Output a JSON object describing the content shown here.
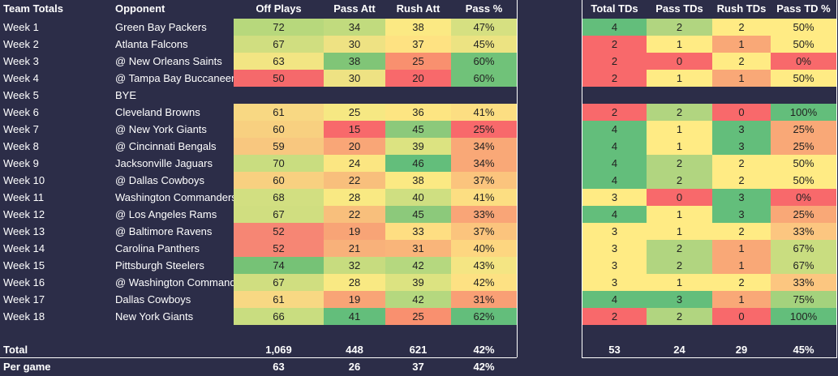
{
  "left_headers": [
    "Team Totals",
    "Opponent",
    "Off Plays",
    "Pass Att",
    "Rush Att",
    "Pass %"
  ],
  "right_headers": [
    "Total TDs",
    "Pass TDs",
    "Rush TDs",
    "Pass TD %"
  ],
  "weeks": [
    {
      "week": "Week 1",
      "opp": "Green Bay Packers",
      "off": "72",
      "pa": "34",
      "ra": "38",
      "pp": "47%",
      "tt": "4",
      "ptd": "2",
      "rtd": "2",
      "ptp": "50%"
    },
    {
      "week": "Week 2",
      "opp": "Atlanta Falcons",
      "off": "67",
      "pa": "30",
      "ra": "37",
      "pp": "45%",
      "tt": "2",
      "ptd": "1",
      "rtd": "1",
      "ptp": "50%"
    },
    {
      "week": "Week 3",
      "opp": "@ New Orleans Saints",
      "off": "63",
      "pa": "38",
      "ra": "25",
      "pp": "60%",
      "tt": "2",
      "ptd": "0",
      "rtd": "2",
      "ptp": "0%"
    },
    {
      "week": "Week 4",
      "opp": "@ Tampa Bay Buccaneers",
      "off": "50",
      "pa": "30",
      "ra": "20",
      "pp": "60%",
      "tt": "2",
      "ptd": "1",
      "rtd": "1",
      "ptp": "50%"
    },
    {
      "week": "Week 5",
      "opp": "BYE",
      "off": "",
      "pa": "",
      "ra": "",
      "pp": "",
      "tt": "",
      "ptd": "",
      "rtd": "",
      "ptp": ""
    },
    {
      "week": "Week 6",
      "opp": "Cleveland Browns",
      "off": "61",
      "pa": "25",
      "ra": "36",
      "pp": "41%",
      "tt": "2",
      "ptd": "2",
      "rtd": "0",
      "ptp": "100%"
    },
    {
      "week": "Week 7",
      "opp": "@ New York Giants",
      "off": "60",
      "pa": "15",
      "ra": "45",
      "pp": "25%",
      "tt": "4",
      "ptd": "1",
      "rtd": "3",
      "ptp": "25%"
    },
    {
      "week": "Week 8",
      "opp": "@ Cincinnati Bengals",
      "off": "59",
      "pa": "20",
      "ra": "39",
      "pp": "34%",
      "tt": "4",
      "ptd": "1",
      "rtd": "3",
      "ptp": "25%"
    },
    {
      "week": "Week 9",
      "opp": "Jacksonville Jaguars",
      "off": "70",
      "pa": "24",
      "ra": "46",
      "pp": "34%",
      "tt": "4",
      "ptd": "2",
      "rtd": "2",
      "ptp": "50%"
    },
    {
      "week": "Week 10",
      "opp": "@ Dallas Cowboys",
      "off": "60",
      "pa": "22",
      "ra": "38",
      "pp": "37%",
      "tt": "4",
      "ptd": "2",
      "rtd": "2",
      "ptp": "50%"
    },
    {
      "week": "Week 11",
      "opp": "Washington Commanders",
      "off": "68",
      "pa": "28",
      "ra": "40",
      "pp": "41%",
      "tt": "3",
      "ptd": "0",
      "rtd": "3",
      "ptp": "0%"
    },
    {
      "week": "Week 12",
      "opp": "@ Los Angeles Rams",
      "off": "67",
      "pa": "22",
      "ra": "45",
      "pp": "33%",
      "tt": "4",
      "ptd": "1",
      "rtd": "3",
      "ptp": "25%"
    },
    {
      "week": "Week 13",
      "opp": "@ Baltimore Ravens",
      "off": "52",
      "pa": "19",
      "ra": "33",
      "pp": "37%",
      "tt": "3",
      "ptd": "1",
      "rtd": "2",
      "ptp": "33%"
    },
    {
      "week": "Week 14",
      "opp": "Carolina Panthers",
      "off": "52",
      "pa": "21",
      "ra": "31",
      "pp": "40%",
      "tt": "3",
      "ptd": "2",
      "rtd": "1",
      "ptp": "67%"
    },
    {
      "week": "Week 15",
      "opp": "Pittsburgh Steelers",
      "off": "74",
      "pa": "32",
      "ra": "42",
      "pp": "43%",
      "tt": "3",
      "ptd": "2",
      "rtd": "1",
      "ptp": "67%"
    },
    {
      "week": "Week 16",
      "opp": "@ Washington Commanders",
      "off": "67",
      "pa": "28",
      "ra": "39",
      "pp": "42%",
      "tt": "3",
      "ptd": "1",
      "rtd": "2",
      "ptp": "33%"
    },
    {
      "week": "Week 17",
      "opp": "Dallas Cowboys",
      "off": "61",
      "pa": "19",
      "ra": "42",
      "pp": "31%",
      "tt": "4",
      "ptd": "3",
      "rtd": "1",
      "ptp": "75%"
    },
    {
      "week": "Week 18",
      "opp": "New York Giants",
      "off": "66",
      "pa": "41",
      "ra": "25",
      "pp": "62%",
      "tt": "2",
      "ptd": "2",
      "rtd": "0",
      "ptp": "100%"
    }
  ],
  "colors": {
    "off": [
      "#b7d87c",
      "#d0de80",
      "#f2e583",
      "#f5696b",
      null,
      "#f8d883",
      "#f8d080",
      "#f8c77f",
      "#c9dd80",
      "#f8d080",
      "#d2df81",
      "#d0de80",
      "#f68674",
      "#f68674",
      "#76c276",
      null,
      null,
      null
    ],
    "pa": [
      "#c1db7e",
      "#eee283",
      "#80c577",
      "#eee283",
      null,
      "#f6e883",
      "#f8696b",
      "#f9a677",
      "#fbe682",
      "#f8bf7c",
      "#f9e983",
      "#f8bf7c",
      "#f8a476",
      "#f8b17a",
      "#c7dc7f",
      "#f9e983",
      "#f8a476",
      "#63be7b"
    ],
    "ra": [
      "#fbe983",
      "#fee282",
      "#f9906f",
      "#f8696b",
      null,
      "#fde582",
      "#8cc97b",
      "#dce381",
      "#63be7b",
      "#fbe983",
      "#cfdf81",
      "#8cc97b",
      "#fede82",
      "#f9b57a",
      "#b5d87f",
      "#dce381",
      "#b5d87f",
      "#f9906f"
    ],
    "pp": [
      "#d6e081",
      "#ece382",
      "#70c279",
      "#70c279",
      null,
      "#fcde82",
      "#f8696b",
      "#f9a877",
      "#f9a877",
      "#fbc47d",
      "#fcde82",
      "#f9a577",
      "#fbc47d",
      "#fdd680",
      "#f4e583",
      "#fde183",
      "#f99f75",
      "#63be7b"
    ],
    "tt": [
      "#63be7b",
      "#f8696b",
      "#f8696b",
      "#f8696b",
      null,
      "#f8696b",
      "#63be7b",
      "#63be7b",
      "#63be7b",
      "#63be7b",
      "#ffeb84",
      "#63be7b",
      "#ffeb84",
      "#ffeb84",
      "#ffeb84",
      "#ffeb84",
      "#63be7b",
      "#f8696b"
    ],
    "ptd": [
      "#b1d580",
      "#ffeb84",
      "#f8696b",
      "#ffeb84",
      null,
      "#b1d580",
      "#ffeb84",
      "#ffeb84",
      "#b1d580",
      "#b1d580",
      "#f8696b",
      "#ffeb84",
      "#ffeb84",
      "#b1d580",
      "#b1d580",
      "#ffeb84",
      "#63be7b",
      "#b1d580"
    ],
    "rtd": [
      "#ffeb84",
      "#f9a877",
      "#ffeb84",
      "#f9a877",
      null,
      "#f8696b",
      "#63be7b",
      "#63be7b",
      "#ffeb84",
      "#ffeb84",
      "#63be7b",
      "#63be7b",
      "#ffeb84",
      "#f9a877",
      "#f9a877",
      "#ffeb84",
      "#f9a877",
      "#f8696b"
    ],
    "ptp": [
      "#ffeb84",
      "#ffeb84",
      "#f8696b",
      "#ffeb84",
      null,
      "#63be7b",
      "#f9a877",
      "#f9a877",
      "#ffeb84",
      "#ffeb84",
      "#f8696b",
      "#f9a877",
      "#fcc680",
      "#c9dd80",
      "#c9dd80",
      "#fcc680",
      "#a4d27d",
      "#63be7b"
    ]
  },
  "totals": {
    "label": "Total",
    "off": "1,069",
    "pa": "448",
    "ra": "621",
    "pp": "42%",
    "tt": "53",
    "ptd": "24",
    "rtd": "29",
    "ptp": "45%"
  },
  "per_game": {
    "label": "Per game",
    "off": "63",
    "pa": "26",
    "ra": "37",
    "pp": "42%"
  }
}
